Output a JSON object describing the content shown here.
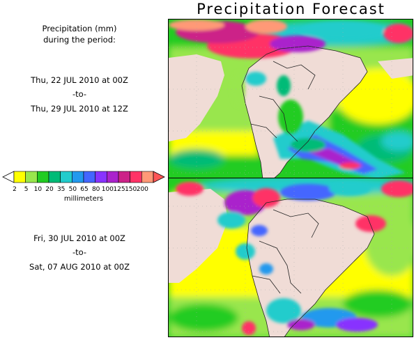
{
  "title": "Precipitation Forecast",
  "description": {
    "line1": "Precipitation (mm)",
    "line2": "during the period:"
  },
  "period1": {
    "start": "Thu, 22 JUL 2010 at 00Z",
    "sep": "-to-",
    "end": "Thu, 29 JUL 2010 at 12Z"
  },
  "period2": {
    "start": "Fri, 30 JUL 2010 at 00Z",
    "sep": "-to-",
    "end": "Sat, 07 AUG 2010 at 00Z"
  },
  "legend": {
    "unit": "millimeters",
    "ticks": [
      "2",
      "5",
      "10",
      "20",
      "35",
      "50",
      "65",
      "80",
      "100",
      "125",
      "150",
      "200"
    ],
    "colors": [
      "#ffff00",
      "#99e64d",
      "#22cc22",
      "#00bb77",
      "#22cccc",
      "#2299ee",
      "#4466ff",
      "#8833ff",
      "#aa22cc",
      "#cc2288",
      "#ff3366",
      "#ff9977"
    ]
  },
  "land_color": "#f0dcd6",
  "label_color": "#000000"
}
